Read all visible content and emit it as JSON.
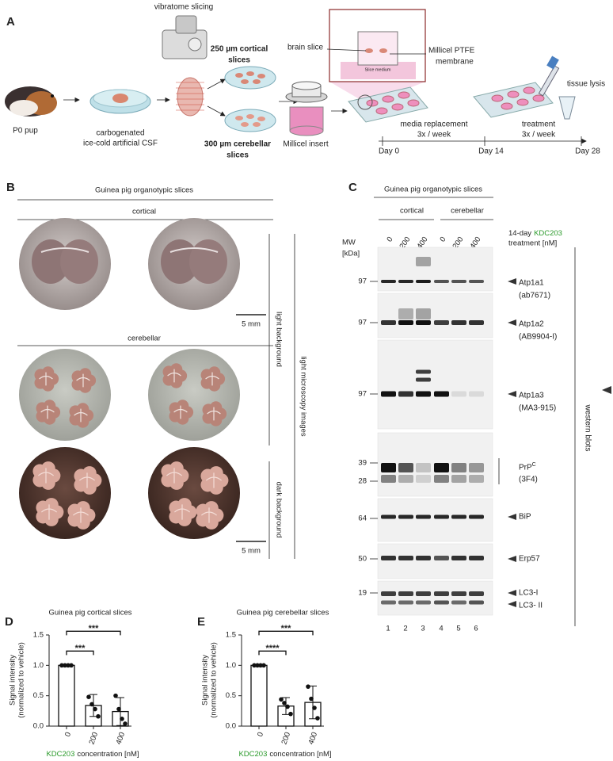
{
  "panel_a": {
    "letter": "A",
    "vibratome": "vibratome slicing",
    "pup": "P0 pup",
    "csf": [
      "carbogenated",
      "ice-cold artificial CSF"
    ],
    "cortical_slices": [
      "250 µm cortical",
      "slices"
    ],
    "cerebellar_slices": [
      "300 µm cerebellar",
      "slices"
    ],
    "insert": "Millicel insert",
    "brain_slice": "brain slice",
    "medium": "Slice medium",
    "membrane": [
      "Millicel PTFE",
      "membrane"
    ],
    "lysis": "tissue lysis",
    "media_replacement": [
      "media replacement",
      "3x / week"
    ],
    "treatment": [
      "treatment",
      "3x / week"
    ],
    "days": [
      "Day 0",
      "Day 14",
      "Day 28"
    ]
  },
  "panel_b": {
    "letter": "B",
    "title": "Guinea pig organotypic slices",
    "cortical": "cortical",
    "cerebellar": "cerebellar",
    "scale_bars": [
      "5 mm",
      "5 mm"
    ],
    "light_background": "light background",
    "dark_background": "dark background",
    "side_label": "light microscopy images"
  },
  "panel_c": {
    "letter": "C",
    "title": "Guinea pig organotypic slices",
    "groups": [
      "cortical",
      "cerebellar"
    ],
    "treatment": [
      "14-day",
      "KDC203",
      "treatment [nM]"
    ],
    "lanes": [
      "0",
      "200",
      "400",
      "0",
      "200",
      "400"
    ],
    "mw": [
      "MW",
      "[kDa]"
    ],
    "blots": [
      {
        "markers": [
          "97"
        ],
        "labels": [
          "Atp1a1",
          "(ab7671)"
        ]
      },
      {
        "markers": [
          "97"
        ],
        "labels": [
          "Atp1a2",
          "(AB9904-I)"
        ]
      },
      {
        "markers": [
          "97"
        ],
        "labels": [
          "Atp1a3",
          "(MA3-915)"
        ]
      },
      {
        "markers": [
          "39",
          "28"
        ],
        "labels": [
          "PrP",
          "(3F4)"
        ],
        "superscript": "C"
      },
      {
        "markers": [
          "64"
        ],
        "labels": [
          "BiP"
        ]
      },
      {
        "markers": [
          "50"
        ],
        "labels": [
          "Erp57"
        ]
      },
      {
        "markers": [
          "19"
        ],
        "labels": [
          "LC3-I",
          "LC3- II"
        ]
      }
    ],
    "lane_numbers": [
      "1",
      "2",
      "3",
      "4",
      "5",
      "6"
    ],
    "side_label": "western blots"
  },
  "chart_data": [
    {
      "type": "bar",
      "letter": "D",
      "title": "Guinea pig cortical slices",
      "ylabel": [
        "Signal intensity",
        "(normalized to vehicle)"
      ],
      "xlabel": [
        "KDC203",
        "concentration [nM]"
      ],
      "categories": [
        "0",
        "200",
        "400"
      ],
      "values": [
        1.0,
        0.34,
        0.24
      ],
      "errors": [
        0,
        0.18,
        0.23
      ],
      "points": [
        [
          1,
          1,
          1,
          1
        ],
        [
          0.48,
          0.36,
          0.28,
          0.16
        ],
        [
          0.5,
          0.28,
          0.12,
          0.04
        ]
      ],
      "significance": [
        "***",
        "***"
      ],
      "color": "#ffffff",
      "ylim": [
        0,
        1.5
      ],
      "yticks": [
        {
          "value": 0,
          "label": "0.0"
        },
        0.5,
        {
          "value": 1,
          "label": "1.0"
        },
        1.5
      ]
    },
    {
      "type": "bar",
      "letter": "E",
      "title": "Guinea pig cerebellar slices",
      "ylabel": [
        "Signal intensity",
        "(normalized to vehicle)"
      ],
      "xlabel": [
        "KDC203",
        "concentration [nM]"
      ],
      "categories": [
        "0",
        "200",
        "400"
      ],
      "values": [
        1.0,
        0.33,
        0.39
      ],
      "errors": [
        0,
        0.14,
        0.27
      ],
      "points": [
        [
          1,
          1,
          1,
          1
        ],
        [
          0.44,
          0.38,
          0.32,
          0.2
        ],
        [
          0.65,
          0.45,
          0.3,
          0.13
        ]
      ],
      "significance": [
        "****",
        "***"
      ],
      "color": "#ffffff",
      "ylim": [
        0,
        1.5
      ],
      "yticks": [
        {
          "value": 0,
          "label": "0.0"
        },
        0.5,
        {
          "value": 1,
          "label": "1.0"
        },
        1.5
      ]
    }
  ]
}
